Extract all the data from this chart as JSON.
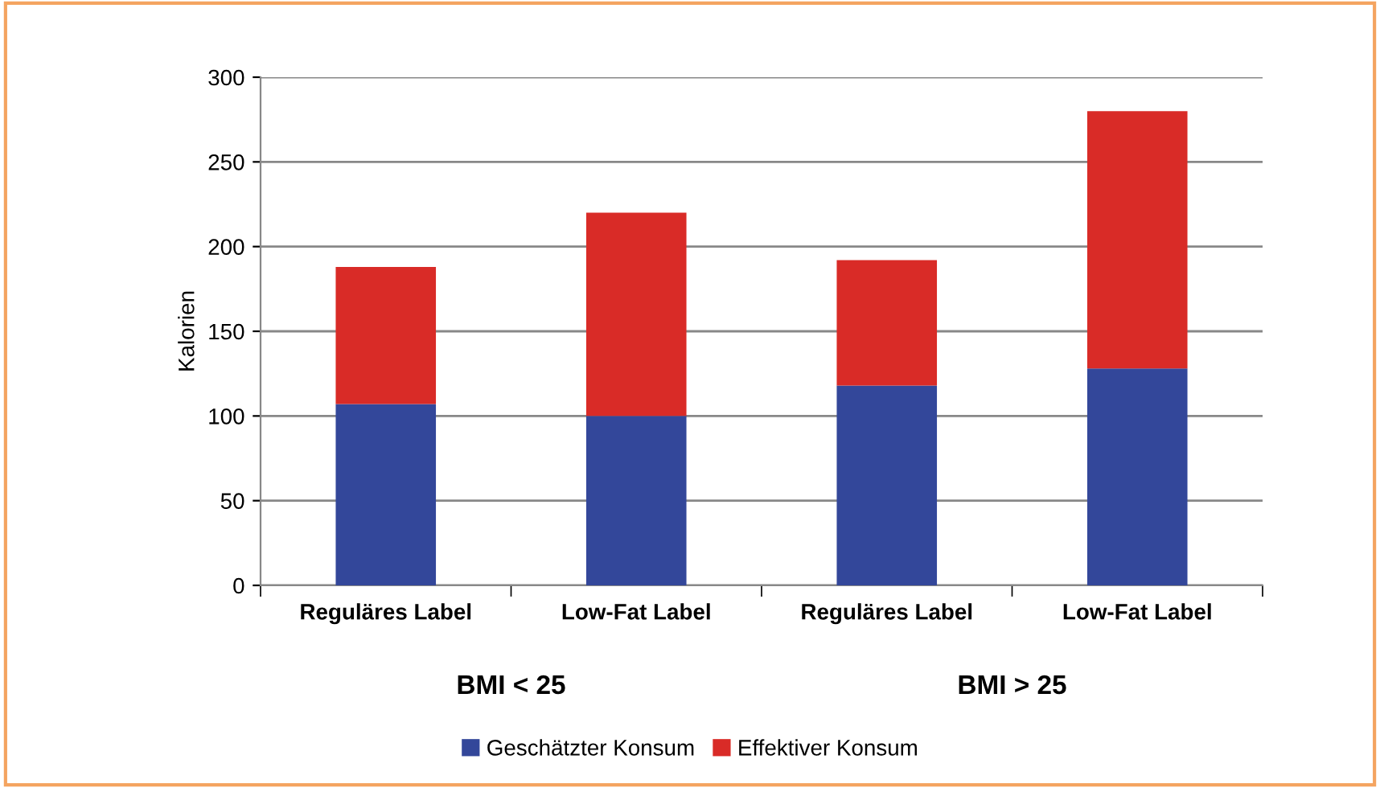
{
  "chart_data": {
    "type": "bar",
    "stacked": true,
    "ylabel": "Kalorien",
    "categories": [
      "Reguläres Label",
      "Low-Fat Label",
      "Reguläres Label",
      "Low-Fat Label"
    ],
    "series": [
      {
        "name": "Geschätzter Konsum",
        "color": "#33479a",
        "values": [
          107,
          100,
          118,
          128
        ]
      },
      {
        "name": "Effektiver Konsum",
        "color": "#d92b27",
        "values": [
          81,
          120,
          74,
          152
        ]
      }
    ],
    "ylim": [
      0,
      300
    ],
    "yticks": [
      0,
      50,
      100,
      150,
      200,
      250,
      300
    ],
    "grid": "y",
    "legend": "bottom",
    "annotations": [
      "BMI < 25",
      "BMI > 25"
    ]
  }
}
